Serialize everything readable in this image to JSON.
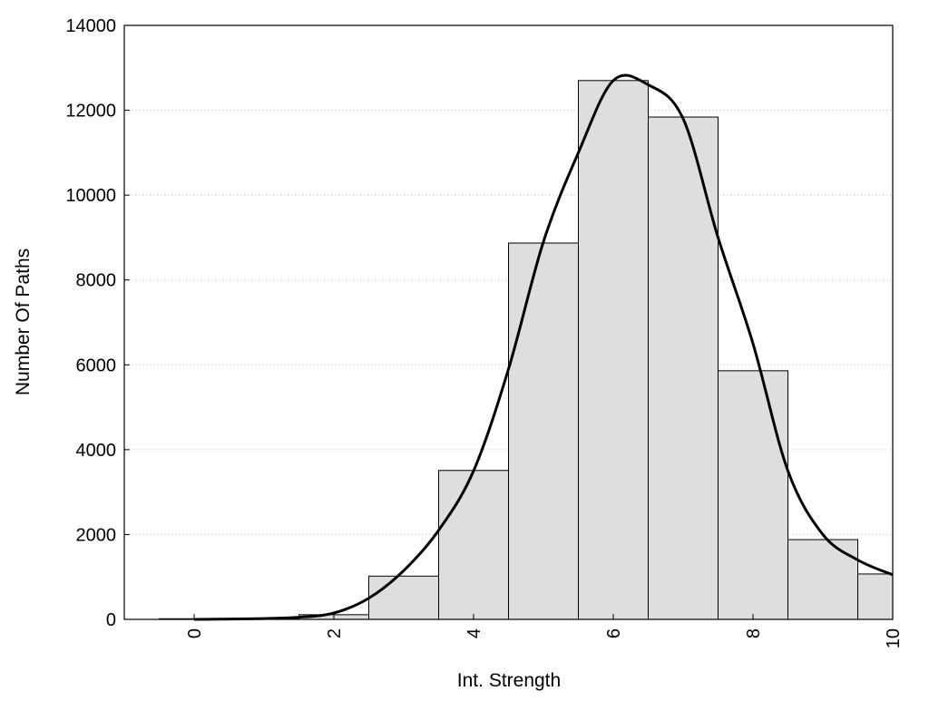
{
  "chart_data": {
    "type": "bar",
    "title": "",
    "xlabel": "Int. Strength",
    "ylabel": "Number Of Paths",
    "xlim": [
      -1,
      10
    ],
    "ylim": [
      0,
      14000
    ],
    "x_ticks": [
      0,
      2,
      4,
      6,
      8,
      10
    ],
    "y_ticks": [
      0,
      2000,
      4000,
      6000,
      8000,
      10000,
      12000,
      14000
    ],
    "grid": "horizontal dotted",
    "legend": "none",
    "bars": [
      {
        "x": 0,
        "value": 15
      },
      {
        "x": 1,
        "value": 25
      },
      {
        "x": 2,
        "value": 110
      },
      {
        "x": 3,
        "value": 1020
      },
      {
        "x": 4,
        "value": 3510
      },
      {
        "x": 5,
        "value": 8870
      },
      {
        "x": 6,
        "value": 12700
      },
      {
        "x": 7,
        "value": 11840
      },
      {
        "x": 8,
        "value": 5860
      },
      {
        "x": 9,
        "value": 1880
      },
      {
        "x": 10,
        "value": 1070
      }
    ],
    "curve": {
      "x": [
        0,
        1,
        1.5,
        2,
        2.5,
        3,
        3.5,
        4,
        4.5,
        5,
        5.5,
        6,
        6.5,
        7,
        7.5,
        8,
        8.5,
        9,
        9.5,
        10
      ],
      "y": [
        0,
        20,
        50,
        150,
        500,
        1150,
        2100,
        3500,
        5900,
        8900,
        11000,
        12700,
        12600,
        11800,
        9000,
        6500,
        3500,
        2000,
        1400,
        1050
      ]
    },
    "colors": {
      "bar_fill": "#dedede",
      "bar_edge": "#000000",
      "curve": "#000000",
      "grid": "#bdbdbd"
    }
  }
}
